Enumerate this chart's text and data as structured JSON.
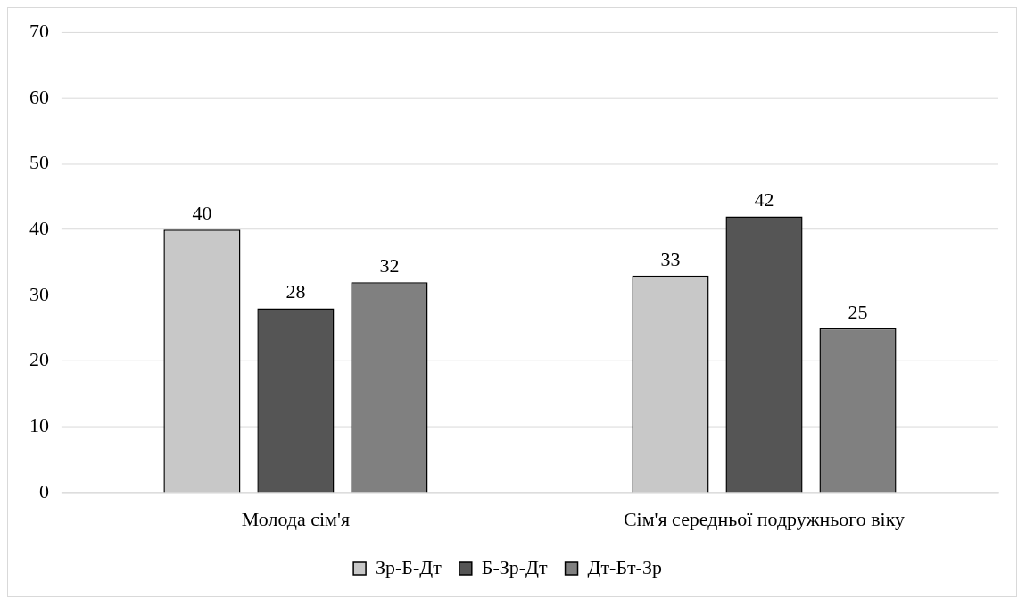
{
  "chart_data": {
    "type": "bar",
    "categories": [
      "Молода сім'я",
      "Сім'я середньої подружнього віку"
    ],
    "series": [
      {
        "name": "Зр-Б-Дт",
        "color": "#c8c8c8",
        "values": [
          40,
          33
        ]
      },
      {
        "name": "Б-Зр-Дт",
        "color": "#555555",
        "values": [
          28,
          42
        ]
      },
      {
        "name": "Дт-Бт-Зр",
        "color": "#808080",
        "values": [
          32,
          25
        ]
      }
    ],
    "ylim": [
      0,
      70
    ],
    "yticks": [
      0,
      10,
      20,
      30,
      40,
      50,
      60,
      70
    ],
    "grid": "y",
    "legend": "bottom",
    "data_labels": true
  }
}
